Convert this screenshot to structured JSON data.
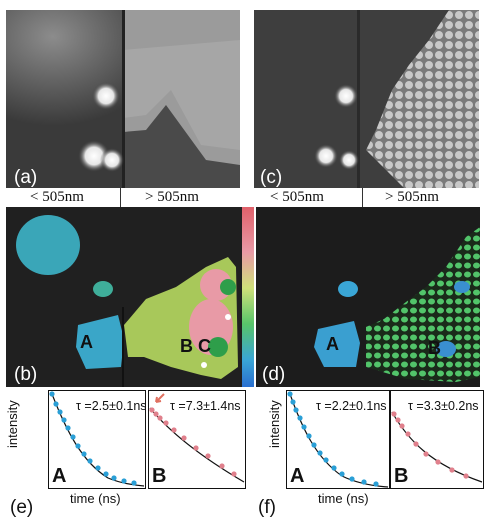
{
  "panels": {
    "a": {
      "label": "(a)"
    },
    "b": {
      "label": "(b)",
      "regions": [
        "A",
        "B",
        "C"
      ]
    },
    "c": {
      "label": "(c)"
    },
    "d": {
      "label": "(d)",
      "regions": [
        "A",
        "B"
      ]
    },
    "e": {
      "label": "(e)"
    },
    "f": {
      "label": "(f)"
    }
  },
  "wavelength_labels": {
    "left_short": "< 505nm",
    "left_long": "> 505nm",
    "right_short": "< 505nm",
    "right_long": "> 505nm"
  },
  "decay_plots": {
    "e": {
      "ylabel": "intensity",
      "xlabel": "time (ns)",
      "A": {
        "letter": "A",
        "tau": "τ =2.5±0.1ns"
      },
      "B": {
        "letter": "B",
        "tau": "τ =7.3±1.4ns"
      }
    },
    "f": {
      "ylabel": "intensity",
      "xlabel": "time (ns)",
      "A": {
        "letter": "A",
        "tau": "τ =2.2±0.1ns"
      },
      "B": {
        "letter": "B",
        "tau": "τ =3.3±0.2ns"
      }
    }
  },
  "colors": {
    "blue_data": "#2a9fd6",
    "pink_data": "#e0808c",
    "fit_line": "#111111"
  }
}
